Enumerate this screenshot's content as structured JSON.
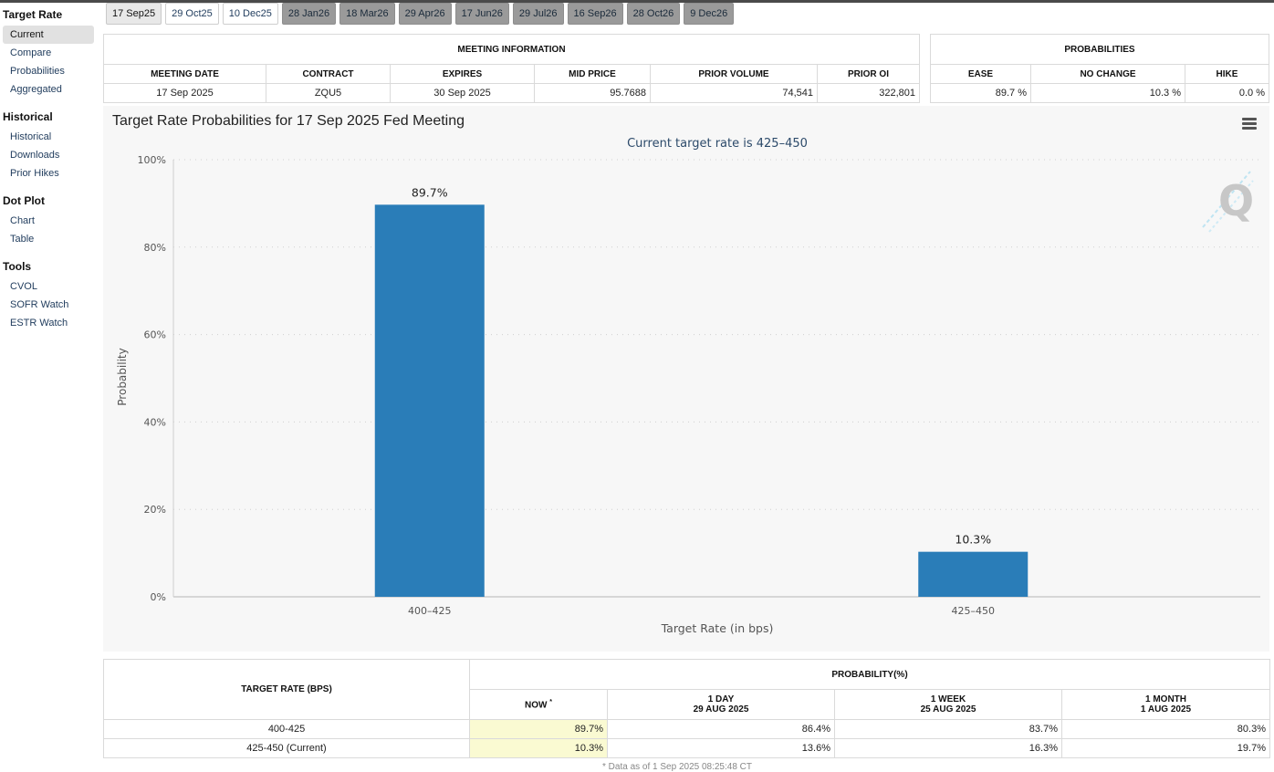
{
  "sidebar": {
    "sections": [
      {
        "title": "Target Rate",
        "items": [
          "Current",
          "Compare",
          "Probabilities",
          "Aggregated"
        ]
      },
      {
        "title": "Historical",
        "items": [
          "Historical",
          "Downloads",
          "Prior Hikes"
        ]
      },
      {
        "title": "Dot Plot",
        "items": [
          "Chart",
          "Table"
        ]
      },
      {
        "title": "Tools",
        "items": [
          "CVOL",
          "SOFR Watch",
          "ESTR Watch"
        ]
      }
    ]
  },
  "tabs": [
    "17 Sep25",
    "29 Oct25",
    "10 Dec25",
    "28 Jan26",
    "18 Mar26",
    "29 Apr26",
    "17 Jun26",
    "29 Jul26",
    "16 Sep26",
    "28 Oct26",
    "9 Dec26"
  ],
  "meeting_info": {
    "title": "MEETING INFORMATION",
    "headers": [
      "MEETING DATE",
      "CONTRACT",
      "EXPIRES",
      "MID PRICE",
      "PRIOR VOLUME",
      "PRIOR OI"
    ],
    "row": [
      "17 Sep 2025",
      "ZQU5",
      "30 Sep 2025",
      "95.7688",
      "74,541",
      "322,801"
    ]
  },
  "probabilities": {
    "title": "PROBABILITIES",
    "headers": [
      "EASE",
      "NO CHANGE",
      "HIKE"
    ],
    "row": [
      "89.7 %",
      "10.3 %",
      "0.0 %"
    ]
  },
  "chart": {
    "title": "Target Rate Probabilities for 17 Sep 2025 Fed Meeting",
    "menu_icon": "hamburger-menu-icon",
    "watermark": "Q",
    "bar_color": "#2a7db8"
  },
  "chart_data": {
    "type": "bar",
    "title": "Target Rate Probabilities for 17 Sep 2025 Fed Meeting",
    "subtitle": "Current target rate is 425–450",
    "categories": [
      "400–425",
      "425–450"
    ],
    "values": [
      89.7,
      10.3
    ],
    "data_labels": [
      "89.7%",
      "10.3%"
    ],
    "xlabel": "Target Rate (in bps)",
    "ylabel": "Probability",
    "ylim": [
      0,
      100
    ],
    "yticks": [
      "0%",
      "20%",
      "40%",
      "60%",
      "80%",
      "100%"
    ],
    "grid": true,
    "legend": "none"
  },
  "prob_table": {
    "col0_header": "TARGET RATE (BPS)",
    "group_header": "PROBABILITY(%)",
    "now_header": "NOW",
    "now_marker": "*",
    "sub_headers": [
      {
        "line1": "1 DAY",
        "line2": "29 AUG 2025"
      },
      {
        "line1": "1 WEEK",
        "line2": "25 AUG 2025"
      },
      {
        "line1": "1 MONTH",
        "line2": "1 AUG 2025"
      }
    ],
    "rows": [
      {
        "rate": "400-425",
        "now": "89.7%",
        "day": "86.4%",
        "week": "83.7%",
        "month": "80.3%"
      },
      {
        "rate": "425-450 (Current)",
        "now": "10.3%",
        "day": "13.6%",
        "week": "16.3%",
        "month": "19.7%"
      }
    ],
    "footnote": "* Data as of 1 Sep 2025 08:25:48 CT"
  }
}
